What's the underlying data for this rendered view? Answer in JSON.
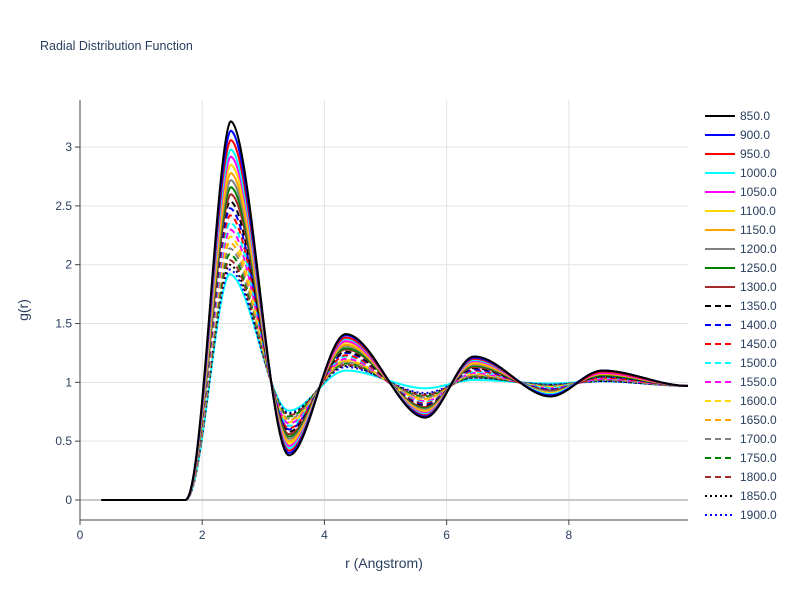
{
  "chart_data": {
    "type": "line",
    "title": "Radial Distribution Function",
    "xlabel": "r (Angstrom)",
    "ylabel": "g(r)",
    "xlim": [
      0,
      9.95
    ],
    "ylim": [
      -0.17,
      3.4
    ],
    "x_ticks": [
      0,
      2,
      4,
      6,
      8
    ],
    "y_ticks": [
      0,
      0.5,
      1,
      1.5,
      2,
      2.5,
      3
    ],
    "x_tick_labels": [
      "0",
      "2",
      "4",
      "6",
      "8"
    ],
    "y_tick_labels": [
      "0",
      "0.5",
      "1",
      "1.5",
      "2",
      "2.5",
      "3"
    ],
    "grid": true,
    "legend_position": "right",
    "series": [
      {
        "name": "850.0",
        "color": "#000000",
        "dash": "solid",
        "params": {
          "peak1": 3.22,
          "peak1_r": 2.46,
          "min1": 0.38,
          "peak2": 1.41,
          "min2": 0.7,
          "peak3": 1.22,
          "min3": 0.88,
          "peak4": 1.1
        }
      },
      {
        "name": "900.0",
        "color": "#0000ff",
        "dash": "solid",
        "params": {
          "peak1": 3.14,
          "peak1_r": 2.46,
          "min1": 0.4,
          "peak2": 1.4,
          "min2": 0.71,
          "peak3": 1.21,
          "min3": 0.89,
          "peak4": 1.1
        }
      },
      {
        "name": "950.0",
        "color": "#ff0000",
        "dash": "solid",
        "params": {
          "peak1": 3.06,
          "peak1_r": 2.46,
          "min1": 0.42,
          "peak2": 1.38,
          "min2": 0.72,
          "peak3": 1.2,
          "min3": 0.89,
          "peak4": 1.09
        }
      },
      {
        "name": "1000.0",
        "color": "#00ffff",
        "dash": "solid",
        "params": {
          "peak1": 2.98,
          "peak1_r": 2.46,
          "min1": 0.44,
          "peak2": 1.37,
          "min2": 0.73,
          "peak3": 1.19,
          "min3": 0.9,
          "peak4": 1.09
        }
      },
      {
        "name": "1050.0",
        "color": "#ff00ff",
        "dash": "solid",
        "params": {
          "peak1": 2.92,
          "peak1_r": 2.46,
          "min1": 0.46,
          "peak2": 1.35,
          "min2": 0.74,
          "peak3": 1.18,
          "min3": 0.9,
          "peak4": 1.08
        }
      },
      {
        "name": "1100.0",
        "color": "#ffd700",
        "dash": "solid",
        "params": {
          "peak1": 2.85,
          "peak1_r": 2.46,
          "min1": 0.48,
          "peak2": 1.34,
          "min2": 0.75,
          "peak3": 1.17,
          "min3": 0.91,
          "peak4": 1.08
        }
      },
      {
        "name": "1150.0",
        "color": "#ffa500",
        "dash": "solid",
        "params": {
          "peak1": 2.78,
          "peak1_r": 2.46,
          "min1": 0.5,
          "peak2": 1.32,
          "min2": 0.76,
          "peak3": 1.16,
          "min3": 0.91,
          "peak4": 1.07
        }
      },
      {
        "name": "1200.0",
        "color": "#808080",
        "dash": "solid",
        "params": {
          "peak1": 2.72,
          "peak1_r": 2.46,
          "min1": 0.52,
          "peak2": 1.31,
          "min2": 0.77,
          "peak3": 1.15,
          "min3": 0.92,
          "peak4": 1.07
        }
      },
      {
        "name": "1250.0",
        "color": "#008000",
        "dash": "solid",
        "params": {
          "peak1": 2.66,
          "peak1_r": 2.46,
          "min1": 0.54,
          "peak2": 1.29,
          "min2": 0.78,
          "peak3": 1.14,
          "min3": 0.92,
          "peak4": 1.06
        }
      },
      {
        "name": "1300.0",
        "color": "#a52a2a",
        "dash": "solid",
        "params": {
          "peak1": 2.6,
          "peak1_r": 2.46,
          "min1": 0.56,
          "peak2": 1.28,
          "min2": 0.79,
          "peak3": 1.13,
          "min3": 0.93,
          "peak4": 1.06
        }
      },
      {
        "name": "1350.0",
        "color": "#000000",
        "dash": "dashed",
        "params": {
          "peak1": 2.54,
          "peak1_r": 2.45,
          "min1": 0.58,
          "peak2": 1.26,
          "min2": 0.8,
          "peak3": 1.12,
          "min3": 0.93,
          "peak4": 1.05
        }
      },
      {
        "name": "1400.0",
        "color": "#0000ff",
        "dash": "dashed",
        "params": {
          "peak1": 2.48,
          "peak1_r": 2.45,
          "min1": 0.6,
          "peak2": 1.25,
          "min2": 0.81,
          "peak3": 1.11,
          "min3": 0.94,
          "peak4": 1.05
        }
      },
      {
        "name": "1450.0",
        "color": "#ff0000",
        "dash": "dashed",
        "params": {
          "peak1": 2.42,
          "peak1_r": 2.45,
          "min1": 0.61,
          "peak2": 1.23,
          "min2": 0.82,
          "peak3": 1.1,
          "min3": 0.94,
          "peak4": 1.04
        }
      },
      {
        "name": "1500.0",
        "color": "#00ffff",
        "dash": "dashed",
        "params": {
          "peak1": 2.36,
          "peak1_r": 2.45,
          "min1": 0.63,
          "peak2": 1.22,
          "min2": 0.83,
          "peak3": 1.09,
          "min3": 0.95,
          "peak4": 1.04
        }
      },
      {
        "name": "1550.0",
        "color": "#ff00ff",
        "dash": "dashed",
        "params": {
          "peak1": 2.3,
          "peak1_r": 2.45,
          "min1": 0.65,
          "peak2": 1.2,
          "min2": 0.84,
          "peak3": 1.08,
          "min3": 0.95,
          "peak4": 1.03
        }
      },
      {
        "name": "1600.0",
        "color": "#ffd700",
        "dash": "dashed",
        "params": {
          "peak1": 2.24,
          "peak1_r": 2.45,
          "min1": 0.66,
          "peak2": 1.19,
          "min2": 0.85,
          "peak3": 1.07,
          "min3": 0.96,
          "peak4": 1.03
        }
      },
      {
        "name": "1650.0",
        "color": "#ffa500",
        "dash": "dashed",
        "params": {
          "peak1": 2.19,
          "peak1_r": 2.44,
          "min1": 0.68,
          "peak2": 1.18,
          "min2": 0.86,
          "peak3": 1.07,
          "min3": 0.96,
          "peak4": 1.03
        }
      },
      {
        "name": "1700.0",
        "color": "#808080",
        "dash": "dashed",
        "params": {
          "peak1": 2.14,
          "peak1_r": 2.44,
          "min1": 0.69,
          "peak2": 1.17,
          "min2": 0.87,
          "peak3": 1.06,
          "min3": 0.97,
          "peak4": 1.02
        }
      },
      {
        "name": "1750.0",
        "color": "#008000",
        "dash": "dashed",
        "params": {
          "peak1": 2.09,
          "peak1_r": 2.44,
          "min1": 0.71,
          "peak2": 1.16,
          "min2": 0.88,
          "peak3": 1.05,
          "min3": 0.97,
          "peak4": 1.02
        }
      },
      {
        "name": "1800.0",
        "color": "#a52a2a",
        "dash": "dashed",
        "params": {
          "peak1": 2.04,
          "peak1_r": 2.44,
          "min1": 0.72,
          "peak2": 1.15,
          "min2": 0.89,
          "peak3": 1.05,
          "min3": 0.97,
          "peak4": 1.02
        }
      },
      {
        "name": "1850.0",
        "color": "#000000",
        "dash": "dotted",
        "params": {
          "peak1": 2.0,
          "peak1_r": 2.44,
          "min1": 0.73,
          "peak2": 1.14,
          "min2": 0.9,
          "peak3": 1.04,
          "min3": 0.98,
          "peak4": 1.01
        }
      },
      {
        "name": "1900.0",
        "color": "#0000ff",
        "dash": "dotted",
        "params": {
          "peak1": 1.96,
          "peak1_r": 2.44,
          "min1": 0.74,
          "peak2": 1.13,
          "min2": 0.91,
          "peak3": 1.04,
          "min3": 0.98,
          "peak4": 1.01
        }
      },
      {
        "name": "",
        "color": "#00ffff",
        "dash": "solid",
        "params": {
          "peak1": 1.92,
          "peak1_r": 2.44,
          "min1": 0.76,
          "peak2": 1.1,
          "min2": 0.95,
          "peak3": 1.02,
          "min3": 0.99,
          "peak4": 1.01
        }
      }
    ]
  }
}
